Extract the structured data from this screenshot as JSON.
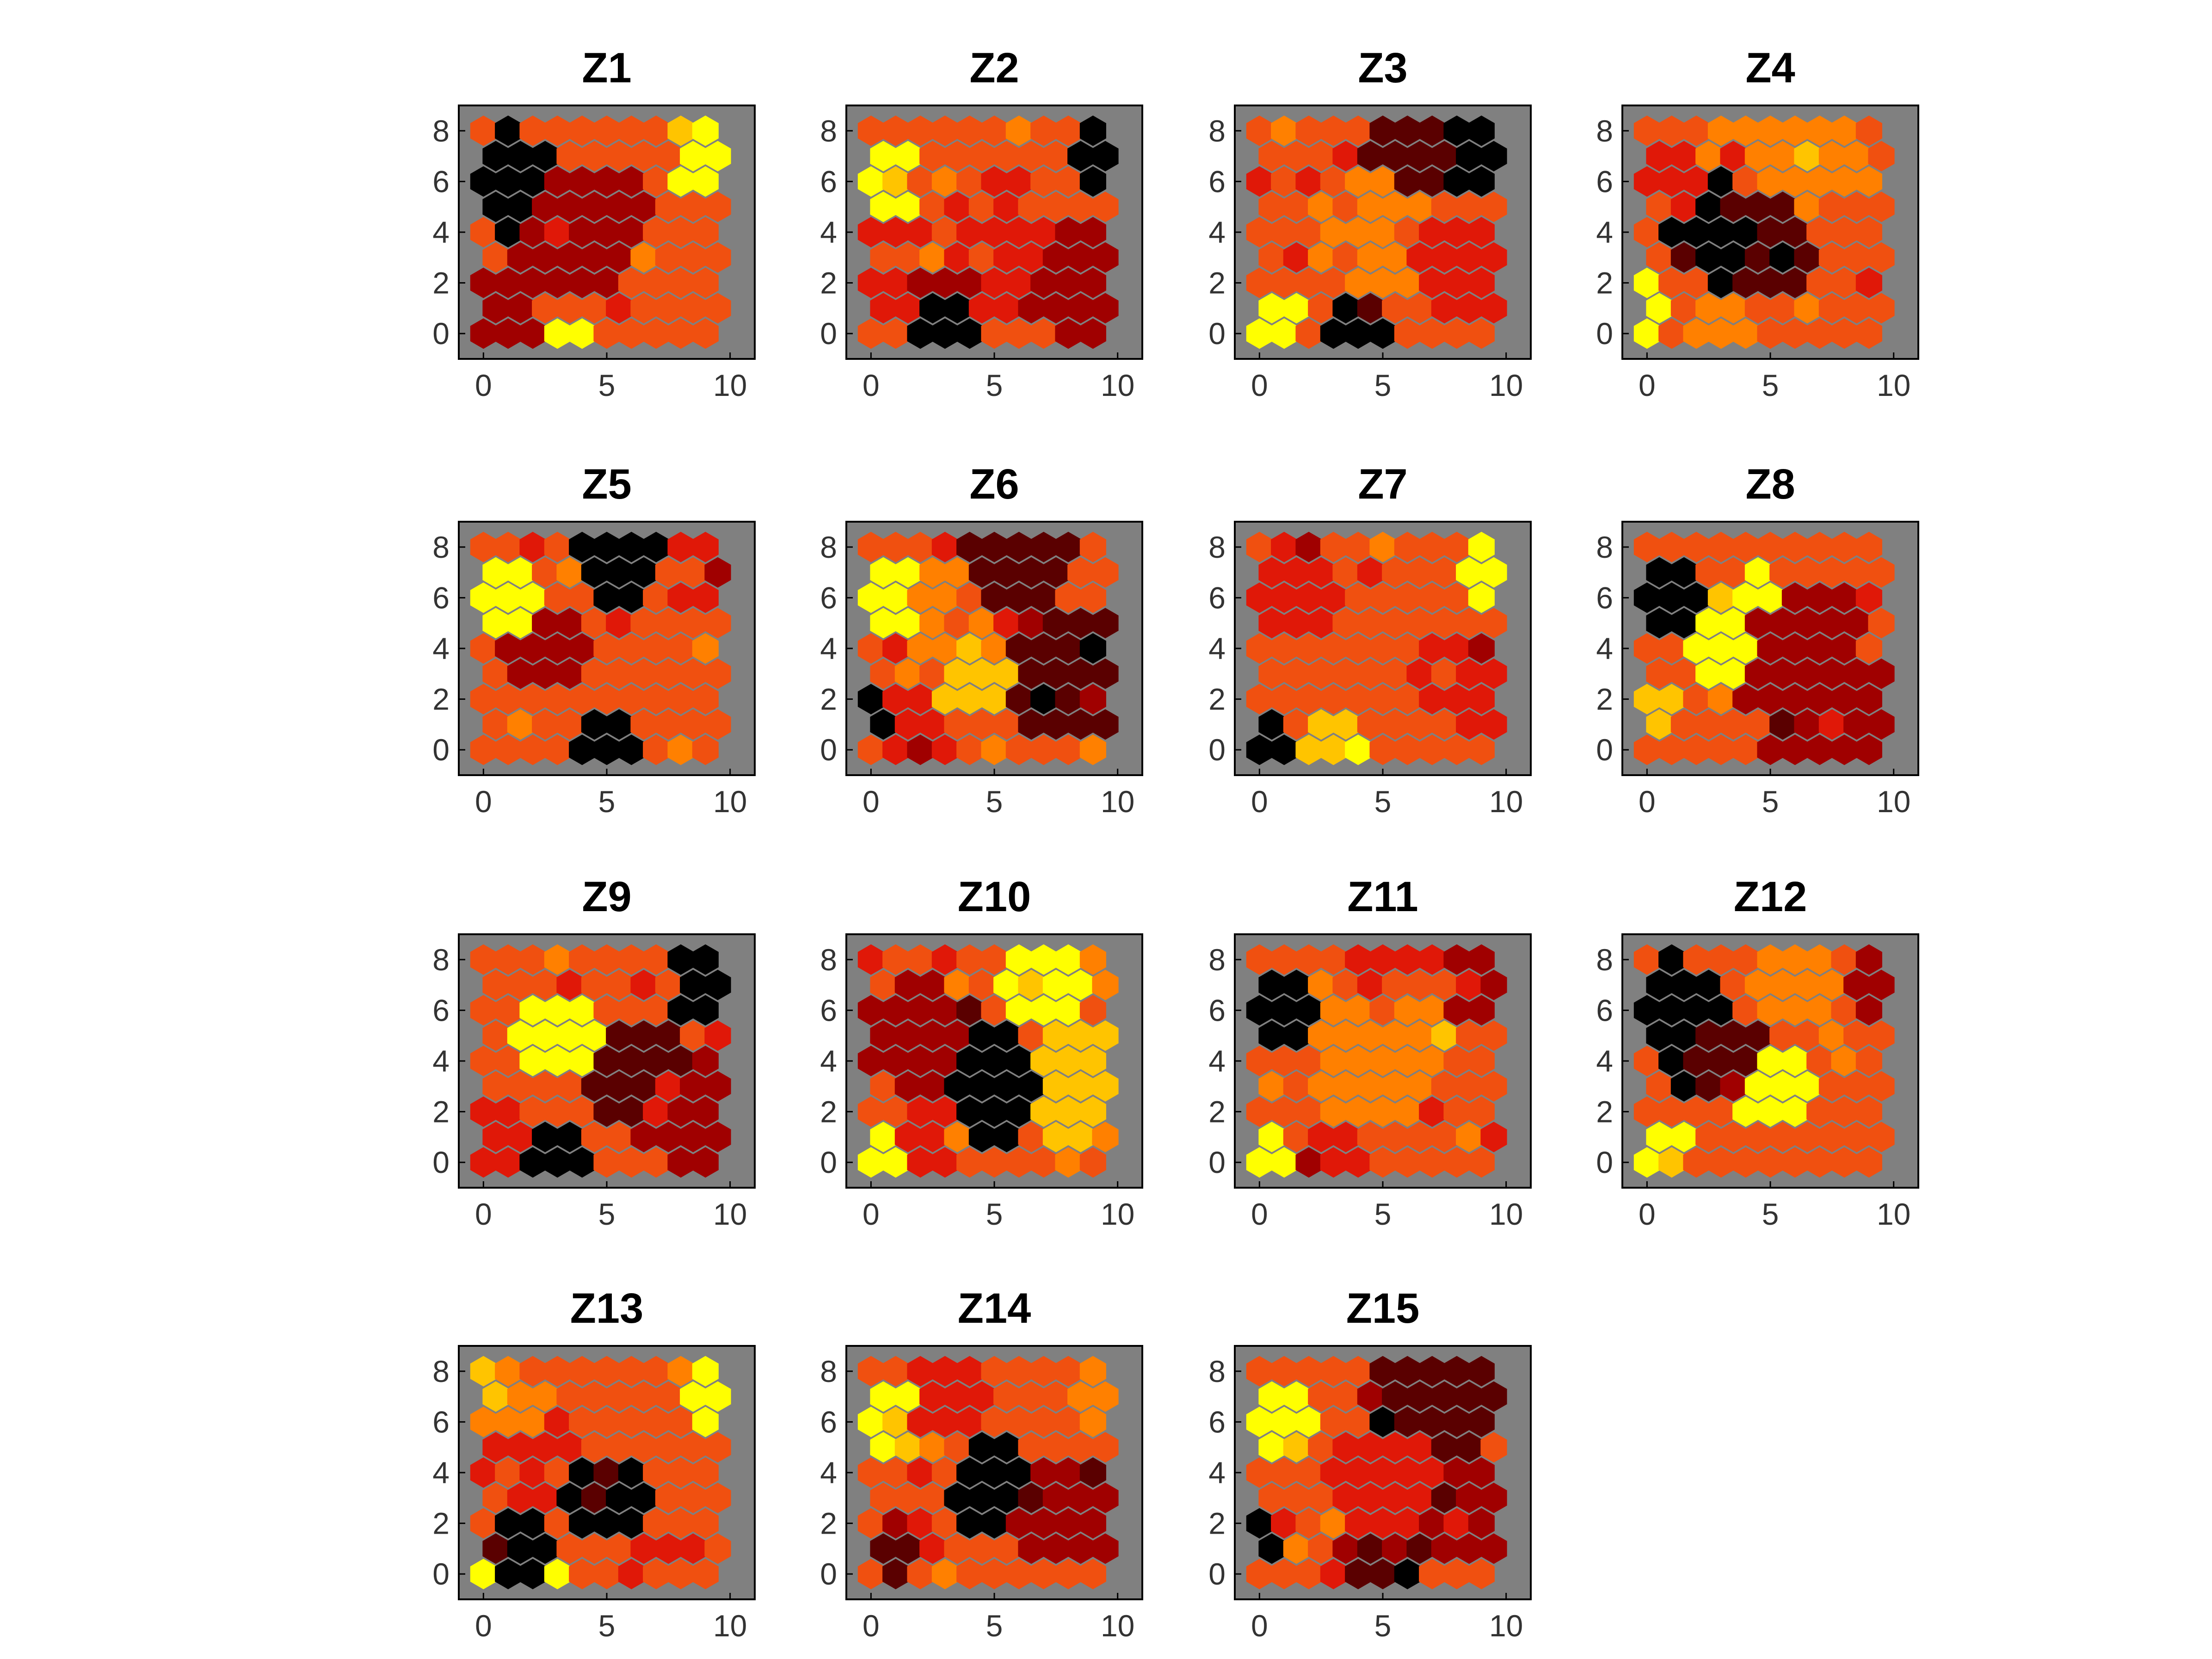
{
  "figure": {
    "background": "#ffffff",
    "panel_background": "#808080",
    "colormap": [
      "#000000",
      "#5a0000",
      "#a00000",
      "#e01808",
      "#f05010",
      "#ff8000",
      "#ffc400",
      "#ffff00"
    ]
  },
  "chart_data": [
    {
      "type": "heatmap",
      "title": "Z1",
      "xlim": [
        -1,
        11
      ],
      "ylim": [
        -1,
        9
      ],
      "xticks": [
        "0",
        "5",
        "10"
      ],
      "yticks": [
        "0",
        "2",
        "4",
        "6",
        "8"
      ],
      "grid_cols": 10,
      "grid_rows": 9,
      "seed": 1,
      "zones": [
        {
          "x": 1,
          "y": 6,
          "r": 2.2,
          "v": 0
        },
        {
          "x": 4,
          "y": 4,
          "r": 3,
          "v": 2
        },
        {
          "x": 9,
          "y": 7,
          "r": 1.5,
          "v": 7
        },
        {
          "x": 3.5,
          "y": 0,
          "r": 1,
          "v": 7
        },
        {
          "x": 8,
          "y": 2,
          "r": 3,
          "v": 4
        },
        {
          "x": 1,
          "y": 1,
          "r": 1.5,
          "v": 2
        }
      ]
    },
    {
      "type": "heatmap",
      "title": "Z2",
      "xlim": [
        -1,
        11
      ],
      "ylim": [
        -1,
        9
      ],
      "xticks": [
        "0",
        "5",
        "10"
      ],
      "yticks": [
        "0",
        "2",
        "4",
        "6",
        "8"
      ],
      "grid_cols": 10,
      "grid_rows": 9,
      "seed": 2,
      "zones": [
        {
          "x": 0.5,
          "y": 6,
          "r": 2,
          "v": 7
        },
        {
          "x": 9.5,
          "y": 7,
          "r": 1.5,
          "v": 0
        },
        {
          "x": 5,
          "y": 3,
          "r": 2.5,
          "v": 3
        },
        {
          "x": 8.5,
          "y": 2,
          "r": 2.5,
          "v": 2
        },
        {
          "x": 3,
          "y": 0.5,
          "r": 1.2,
          "v": 0
        },
        {
          "x": 3,
          "y": 6,
          "r": 2.5,
          "v": 4
        },
        {
          "x": 1,
          "y": 1.5,
          "r": 1.5,
          "v": 3
        }
      ]
    },
    {
      "type": "heatmap",
      "title": "Z3",
      "xlim": [
        -1,
        11
      ],
      "ylim": [
        -1,
        9
      ],
      "xticks": [
        "0",
        "5",
        "10"
      ],
      "yticks": [
        "0",
        "2",
        "4",
        "6",
        "8"
      ],
      "grid_cols": 10,
      "grid_rows": 9,
      "seed": 3,
      "zones": [
        {
          "x": 9,
          "y": 7,
          "r": 1.5,
          "v": 0
        },
        {
          "x": 6,
          "y": 7.5,
          "r": 2,
          "v": 1
        },
        {
          "x": 4.5,
          "y": 4,
          "r": 2.5,
          "v": 5
        },
        {
          "x": 0.5,
          "y": 0.5,
          "r": 1.3,
          "v": 7
        },
        {
          "x": 4,
          "y": 0.5,
          "r": 1.2,
          "v": 0
        },
        {
          "x": 8.5,
          "y": 2.5,
          "r": 2.5,
          "v": 3
        },
        {
          "x": 1,
          "y": 6,
          "r": 2,
          "v": 4
        }
      ]
    },
    {
      "type": "heatmap",
      "title": "Z4",
      "xlim": [
        -1,
        11
      ],
      "ylim": [
        -1,
        9
      ],
      "xticks": [
        "0",
        "5",
        "10"
      ],
      "yticks": [
        "0",
        "2",
        "4",
        "6",
        "8"
      ],
      "grid_cols": 10,
      "grid_rows": 9,
      "seed": 4,
      "zones": [
        {
          "x": 3,
          "y": 4,
          "r": 2.2,
          "v": 0
        },
        {
          "x": 5,
          "y": 3.5,
          "r": 2,
          "v": 1
        },
        {
          "x": 6.5,
          "y": 7.5,
          "r": 2.5,
          "v": 5
        },
        {
          "x": 0,
          "y": 1,
          "r": 1.2,
          "v": 7
        },
        {
          "x": 8.5,
          "y": 2,
          "r": 2.5,
          "v": 4
        },
        {
          "x": 0.5,
          "y": 6,
          "r": 1.8,
          "v": 3
        },
        {
          "x": 3,
          "y": 0.3,
          "r": 1.5,
          "v": 5
        }
      ]
    },
    {
      "type": "heatmap",
      "title": "Z5",
      "xlim": [
        -1,
        11
      ],
      "ylim": [
        -1,
        9
      ],
      "xticks": [
        "0",
        "5",
        "10"
      ],
      "yticks": [
        "0",
        "2",
        "4",
        "6",
        "8"
      ],
      "grid_cols": 10,
      "grid_rows": 9,
      "seed": 5,
      "zones": [
        {
          "x": 0.5,
          "y": 6,
          "r": 2,
          "v": 7
        },
        {
          "x": 5.5,
          "y": 7.5,
          "r": 2,
          "v": 0
        },
        {
          "x": 5,
          "y": 0.5,
          "r": 1.2,
          "v": 0
        },
        {
          "x": 7,
          "y": 3,
          "r": 3,
          "v": 4
        },
        {
          "x": 2.5,
          "y": 4,
          "r": 1.8,
          "v": 2
        },
        {
          "x": 9,
          "y": 7,
          "r": 1.5,
          "v": 3
        },
        {
          "x": 1,
          "y": 1.5,
          "r": 1.5,
          "v": 4
        }
      ]
    },
    {
      "type": "heatmap",
      "title": "Z6",
      "xlim": [
        -1,
        11
      ],
      "ylim": [
        -1,
        9
      ],
      "xticks": [
        "0",
        "5",
        "10"
      ],
      "yticks": [
        "0",
        "2",
        "4",
        "6",
        "8"
      ],
      "grid_cols": 10,
      "grid_rows": 9,
      "seed": 6,
      "zones": [
        {
          "x": 0.5,
          "y": 6,
          "r": 2,
          "v": 7
        },
        {
          "x": 4.5,
          "y": 3,
          "r": 2,
          "v": 6
        },
        {
          "x": 8,
          "y": 3,
          "r": 3,
          "v": 1
        },
        {
          "x": 6,
          "y": 7.5,
          "r": 2.5,
          "v": 1
        },
        {
          "x": 0,
          "y": 1.5,
          "r": 1,
          "v": 0
        },
        {
          "x": 3,
          "y": 5.5,
          "r": 1.8,
          "v": 5
        },
        {
          "x": 2,
          "y": 1,
          "r": 1.5,
          "v": 3
        }
      ]
    },
    {
      "type": "heatmap",
      "title": "Z7",
      "xlim": [
        -1,
        11
      ],
      "ylim": [
        -1,
        9
      ],
      "xticks": [
        "0",
        "5",
        "10"
      ],
      "yticks": [
        "0",
        "2",
        "4",
        "6",
        "8"
      ],
      "grid_cols": 10,
      "grid_rows": 9,
      "seed": 7,
      "zones": [
        {
          "x": 9.5,
          "y": 7,
          "r": 1.5,
          "v": 7
        },
        {
          "x": 4.5,
          "y": 4,
          "r": 2,
          "v": 4
        },
        {
          "x": 3,
          "y": 0.5,
          "r": 1.3,
          "v": 6
        },
        {
          "x": 0,
          "y": 0.5,
          "r": 1.2,
          "v": 0
        },
        {
          "x": 8.5,
          "y": 2.5,
          "r": 2.5,
          "v": 3
        },
        {
          "x": 1.5,
          "y": 6.5,
          "r": 2,
          "v": 3
        }
      ]
    },
    {
      "type": "heatmap",
      "title": "Z8",
      "xlim": [
        -1,
        11
      ],
      "ylim": [
        -1,
        9
      ],
      "xticks": [
        "0",
        "5",
        "10"
      ],
      "yticks": [
        "0",
        "2",
        "4",
        "6",
        "8"
      ],
      "grid_cols": 10,
      "grid_rows": 9,
      "seed": 8,
      "zones": [
        {
          "x": 0.5,
          "y": 6,
          "r": 2,
          "v": 0
        },
        {
          "x": 3,
          "y": 4.5,
          "r": 2,
          "v": 7
        },
        {
          "x": 6,
          "y": 4,
          "r": 3,
          "v": 2
        },
        {
          "x": 0,
          "y": 1.5,
          "r": 1.3,
          "v": 6
        },
        {
          "x": 7.5,
          "y": 1,
          "r": 3,
          "v": 2
        },
        {
          "x": 4.5,
          "y": 6,
          "r": 1.2,
          "v": 7
        }
      ]
    },
    {
      "type": "heatmap",
      "title": "Z9",
      "xlim": [
        -1,
        11
      ],
      "ylim": [
        -1,
        9
      ],
      "xticks": [
        "0",
        "5",
        "10"
      ],
      "yticks": [
        "0",
        "2",
        "4",
        "6",
        "8"
      ],
      "grid_cols": 10,
      "grid_rows": 9,
      "seed": 9,
      "zones": [
        {
          "x": 3,
          "y": 5,
          "r": 2,
          "v": 7
        },
        {
          "x": 9,
          "y": 7,
          "r": 1.5,
          "v": 0
        },
        {
          "x": 6,
          "y": 3.5,
          "r": 2.5,
          "v": 1
        },
        {
          "x": 3,
          "y": 0.5,
          "r": 1.5,
          "v": 0
        },
        {
          "x": 8.5,
          "y": 2,
          "r": 2.5,
          "v": 2
        },
        {
          "x": 1,
          "y": 7,
          "r": 2,
          "v": 4
        },
        {
          "x": 0.5,
          "y": 1,
          "r": 1.2,
          "v": 3
        }
      ]
    },
    {
      "type": "heatmap",
      "title": "Z10",
      "xlim": [
        -1,
        11
      ],
      "ylim": [
        -1,
        9
      ],
      "xticks": [
        "0",
        "5",
        "10"
      ],
      "yticks": [
        "0",
        "2",
        "4",
        "6",
        "8"
      ],
      "grid_cols": 10,
      "grid_rows": 9,
      "seed": 10,
      "zones": [
        {
          "x": 5,
          "y": 3,
          "r": 2.2,
          "v": 0
        },
        {
          "x": 8.5,
          "y": 3,
          "r": 2.5,
          "v": 6
        },
        {
          "x": 7,
          "y": 7,
          "r": 2,
          "v": 7
        },
        {
          "x": 2,
          "y": 5,
          "r": 2.5,
          "v": 2
        },
        {
          "x": 0,
          "y": 0.5,
          "r": 1.3,
          "v": 7
        },
        {
          "x": 2,
          "y": 1,
          "r": 1.5,
          "v": 3
        },
        {
          "x": 9.5,
          "y": 7.5,
          "r": 1.2,
          "v": 5
        }
      ]
    },
    {
      "type": "heatmap",
      "title": "Z11",
      "xlim": [
        -1,
        11
      ],
      "ylim": [
        -1,
        9
      ],
      "xticks": [
        "0",
        "5",
        "10"
      ],
      "yticks": [
        "0",
        "2",
        "4",
        "6",
        "8"
      ],
      "grid_cols": 10,
      "grid_rows": 9,
      "seed": 11,
      "zones": [
        {
          "x": 0.5,
          "y": 6,
          "r": 2,
          "v": 0
        },
        {
          "x": 5,
          "y": 4,
          "r": 3,
          "v": 5
        },
        {
          "x": 9,
          "y": 7,
          "r": 1.5,
          "v": 2
        },
        {
          "x": 0,
          "y": 0,
          "r": 1.2,
          "v": 7
        },
        {
          "x": 3,
          "y": 0.5,
          "r": 1.5,
          "v": 3
        },
        {
          "x": 8.5,
          "y": 2,
          "r": 2.5,
          "v": 4
        },
        {
          "x": 5,
          "y": 7.5,
          "r": 1.5,
          "v": 3
        }
      ]
    },
    {
      "type": "heatmap",
      "title": "Z12",
      "xlim": [
        -1,
        11
      ],
      "ylim": [
        -1,
        9
      ],
      "xticks": [
        "0",
        "5",
        "10"
      ],
      "yticks": [
        "0",
        "2",
        "4",
        "6",
        "8"
      ],
      "grid_cols": 10,
      "grid_rows": 9,
      "seed": 12,
      "zones": [
        {
          "x": 1,
          "y": 6,
          "r": 2.2,
          "v": 0
        },
        {
          "x": 3,
          "y": 4,
          "r": 2,
          "v": 1
        },
        {
          "x": 5,
          "y": 3,
          "r": 2,
          "v": 7
        },
        {
          "x": 0.5,
          "y": 0.5,
          "r": 1.3,
          "v": 7
        },
        {
          "x": 8.5,
          "y": 3,
          "r": 2.5,
          "v": 4
        },
        {
          "x": 6,
          "y": 7.5,
          "r": 2,
          "v": 5
        },
        {
          "x": 9,
          "y": 7,
          "r": 1.3,
          "v": 2
        }
      ]
    },
    {
      "type": "heatmap",
      "title": "Z13",
      "xlim": [
        -1,
        11
      ],
      "ylim": [
        -1,
        9
      ],
      "xticks": [
        "0",
        "5",
        "10"
      ],
      "yticks": [
        "0",
        "2",
        "4",
        "6",
        "8"
      ],
      "grid_cols": 10,
      "grid_rows": 9,
      "seed": 13,
      "zones": [
        {
          "x": 5,
          "y": 3,
          "r": 2,
          "v": 0
        },
        {
          "x": 9.5,
          "y": 7,
          "r": 1.5,
          "v": 7
        },
        {
          "x": 0,
          "y": 0,
          "r": 1,
          "v": 7
        },
        {
          "x": 3,
          "y": 0,
          "r": 1,
          "v": 7
        },
        {
          "x": 2,
          "y": 4.5,
          "r": 2,
          "v": 3
        },
        {
          "x": 8.5,
          "y": 2.5,
          "r": 2.5,
          "v": 4
        },
        {
          "x": 1,
          "y": 7,
          "r": 2,
          "v": 5
        },
        {
          "x": 1.5,
          "y": 1,
          "r": 1.2,
          "v": 0
        }
      ]
    },
    {
      "type": "heatmap",
      "title": "Z14",
      "xlim": [
        -1,
        11
      ],
      "ylim": [
        -1,
        9
      ],
      "xticks": [
        "0",
        "5",
        "10"
      ],
      "yticks": [
        "0",
        "2",
        "4",
        "6",
        "8"
      ],
      "grid_cols": 10,
      "grid_rows": 9,
      "seed": 14,
      "zones": [
        {
          "x": 0.5,
          "y": 6,
          "r": 2,
          "v": 7
        },
        {
          "x": 5,
          "y": 3.5,
          "r": 2,
          "v": 0
        },
        {
          "x": 9.5,
          "y": 7,
          "r": 1.3,
          "v": 5
        },
        {
          "x": 8,
          "y": 2.5,
          "r": 2.5,
          "v": 2
        },
        {
          "x": 2,
          "y": 1.5,
          "r": 1.5,
          "v": 3
        },
        {
          "x": 1,
          "y": 1,
          "r": 1.2,
          "v": 1
        },
        {
          "x": 3,
          "y": 7,
          "r": 2,
          "v": 3
        }
      ]
    },
    {
      "type": "heatmap",
      "title": "Z15",
      "xlim": [
        -1,
        11
      ],
      "ylim": [
        -1,
        9
      ],
      "xticks": [
        "0",
        "5",
        "10"
      ],
      "yticks": [
        "0",
        "2",
        "4",
        "6",
        "8"
      ],
      "grid_cols": 10,
      "grid_rows": 9,
      "seed": 15,
      "zones": [
        {
          "x": 0.5,
          "y": 6,
          "r": 2,
          "v": 7
        },
        {
          "x": 5,
          "y": 3.5,
          "r": 2.5,
          "v": 3
        },
        {
          "x": 7,
          "y": 7.5,
          "r": 3,
          "v": 1
        },
        {
          "x": 0,
          "y": 1.5,
          "r": 1,
          "v": 0
        },
        {
          "x": 5,
          "y": 0,
          "r": 2,
          "v": 1
        },
        {
          "x": 8.5,
          "y": 2.5,
          "r": 2,
          "v": 2
        }
      ]
    }
  ]
}
